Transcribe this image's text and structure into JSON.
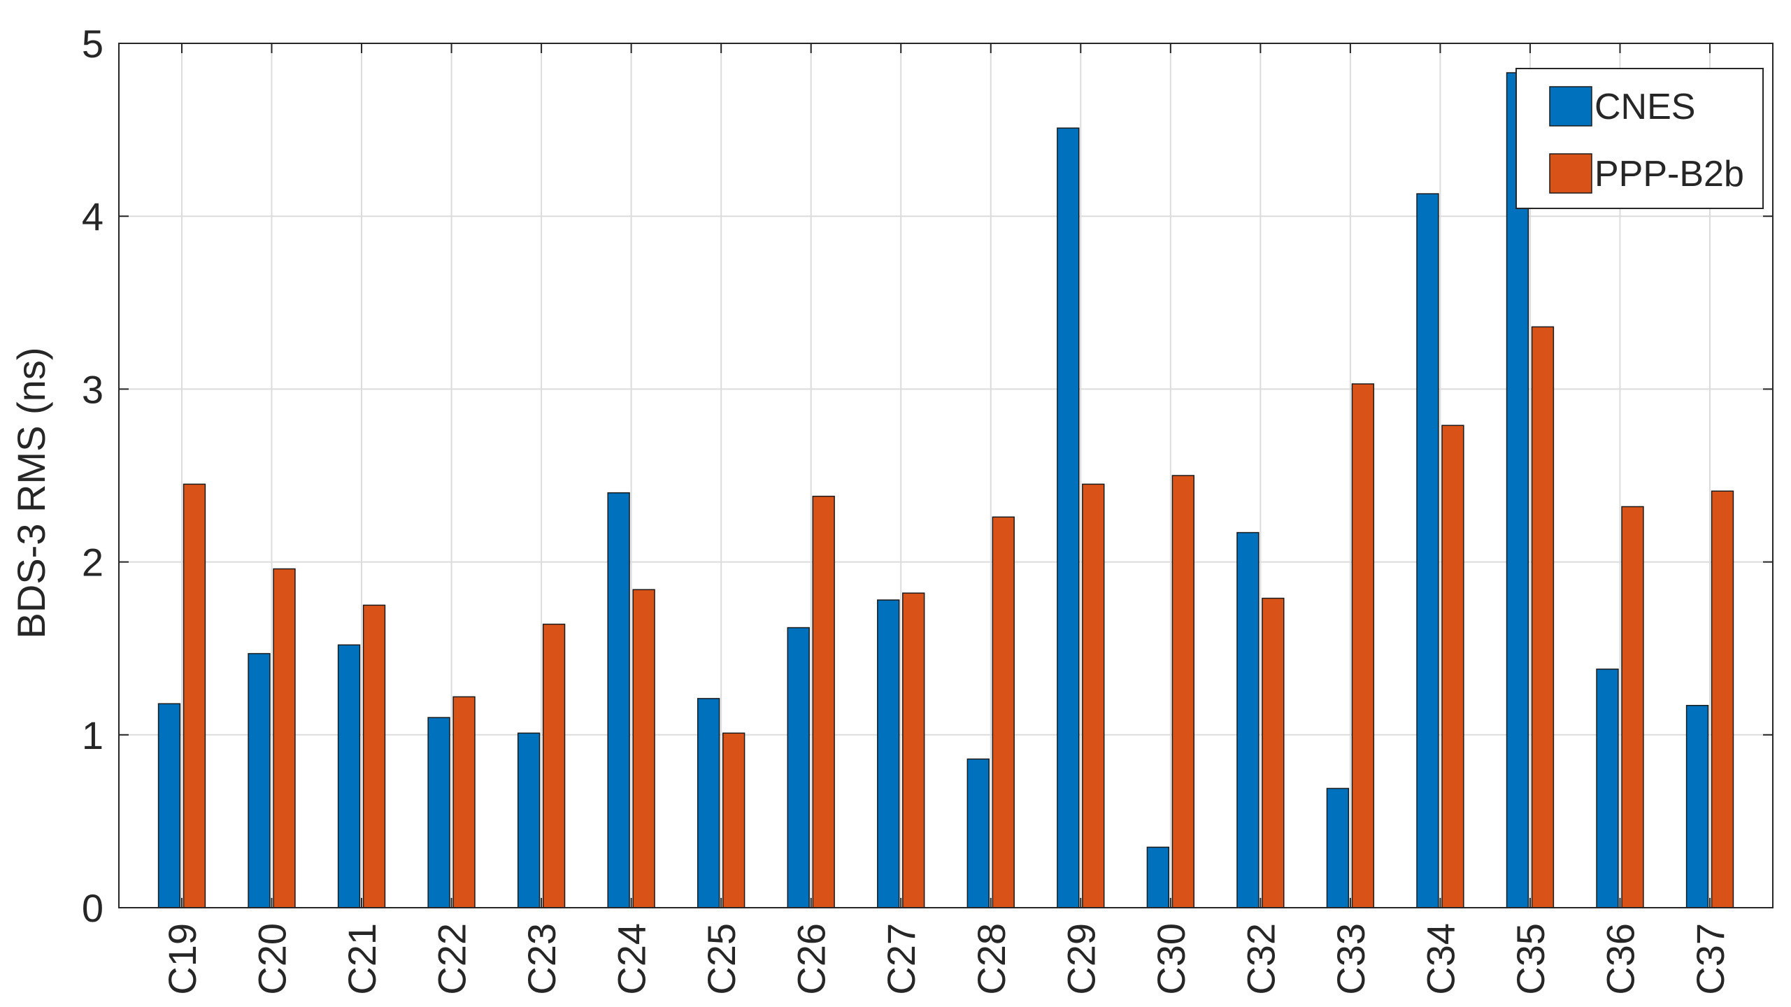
{
  "chart_data": {
    "type": "bar",
    "title": "",
    "xlabel": "",
    "ylabel": "BDS-3 RMS (ns)",
    "ylim": [
      0,
      5
    ],
    "yticks": [
      0,
      1,
      2,
      3,
      4,
      5
    ],
    "grid": true,
    "legend_position": "top-right",
    "categories": [
      "C19",
      "C20",
      "C21",
      "C22",
      "C23",
      "C24",
      "C25",
      "C26",
      "C27",
      "C28",
      "C29",
      "C30",
      "C32",
      "C33",
      "C34",
      "C35",
      "C36",
      "C37"
    ],
    "series": [
      {
        "name": "CNES",
        "color": "#0072BD",
        "values": [
          1.18,
          1.47,
          1.52,
          1.1,
          1.01,
          2.4,
          1.21,
          1.62,
          1.78,
          0.86,
          4.51,
          0.35,
          2.17,
          0.69,
          4.13,
          4.83,
          1.38,
          1.17
        ]
      },
      {
        "name": "PPP-B2b",
        "color": "#D95319",
        "values": [
          2.45,
          1.96,
          1.75,
          1.22,
          1.64,
          1.84,
          1.01,
          2.38,
          1.82,
          2.26,
          2.45,
          2.5,
          1.79,
          3.03,
          2.79,
          3.36,
          2.32,
          2.41
        ]
      }
    ]
  }
}
